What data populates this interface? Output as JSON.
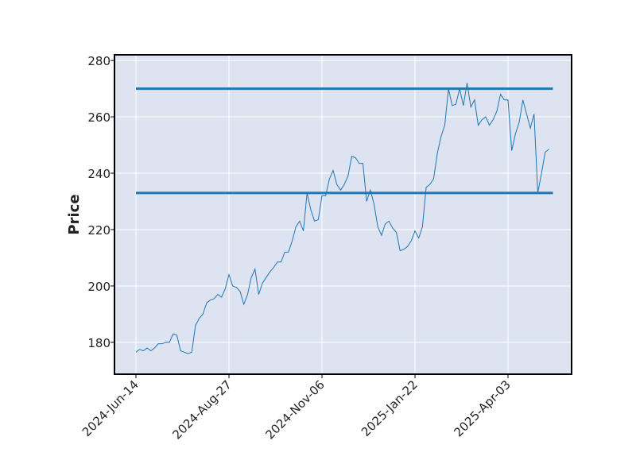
{
  "chart_data": {
    "type": "line",
    "y_label": "Price",
    "categories": [
      "2024-Jun-14",
      null,
      null,
      null,
      null,
      null,
      null,
      null,
      null,
      null,
      null,
      null,
      null,
      null,
      null,
      null,
      null,
      null,
      null,
      null,
      null,
      null,
      null,
      null,
      null,
      "2024-Aug-27",
      null,
      null,
      null,
      null,
      null,
      null,
      null,
      null,
      null,
      null,
      null,
      null,
      null,
      null,
      null,
      null,
      null,
      null,
      null,
      null,
      null,
      null,
      null,
      null,
      "2024-Nov-06",
      null,
      null,
      null,
      null,
      null,
      null,
      null,
      null,
      null,
      null,
      null,
      null,
      null,
      null,
      null,
      null,
      null,
      null,
      null,
      null,
      null,
      null,
      null,
      null,
      "2025-Jan-22",
      null,
      null,
      null,
      null,
      null,
      null,
      null,
      null,
      null,
      null,
      null,
      null,
      null,
      null,
      null,
      null,
      null,
      null,
      null,
      null,
      null,
      null,
      null,
      null,
      "2025-Apr-03",
      null,
      null,
      null,
      null,
      null,
      null,
      null,
      null,
      null,
      null,
      null
    ],
    "series": [
      {
        "color": "#1f77b4",
        "values": [
          176.5,
          177.5,
          177,
          178,
          177,
          178,
          179.5,
          179.5,
          180,
          180,
          183,
          182.5,
          177,
          176.5,
          176,
          176.5,
          186,
          188.5,
          190,
          194,
          195,
          195.5,
          197,
          196,
          199,
          204,
          200,
          199.5,
          198,
          193.5,
          197,
          203,
          206,
          197,
          201,
          203,
          205,
          206.5,
          208.5,
          208.5,
          212,
          212,
          216,
          221,
          223,
          219.5,
          233,
          227,
          223,
          223.5,
          232,
          232,
          238,
          241,
          236,
          234,
          236,
          239,
          246,
          245.5,
          243.5,
          243.5,
          230,
          234,
          229,
          221,
          218,
          222,
          223,
          220.5,
          219,
          212.5,
          213,
          214,
          216,
          219.5,
          217,
          221,
          235,
          236,
          238,
          247,
          253,
          257,
          270,
          264,
          264.5,
          270,
          264,
          272,
          263.5,
          266,
          257,
          259,
          260,
          257,
          259,
          262,
          268,
          266,
          266,
          248,
          254,
          258,
          266,
          261,
          256,
          261,
          233,
          240,
          247.5,
          248.5
        ]
      }
    ],
    "hlines": [
      {
        "value": 270,
        "color": "#1f77b4"
      },
      {
        "value": 233,
        "color": "#1f77b4"
      }
    ],
    "ylim": [
      168.7,
      282.0
    ],
    "yticks": [
      180,
      200,
      220,
      240,
      260,
      280
    ],
    "grid": true,
    "background": "#dde3f0"
  }
}
